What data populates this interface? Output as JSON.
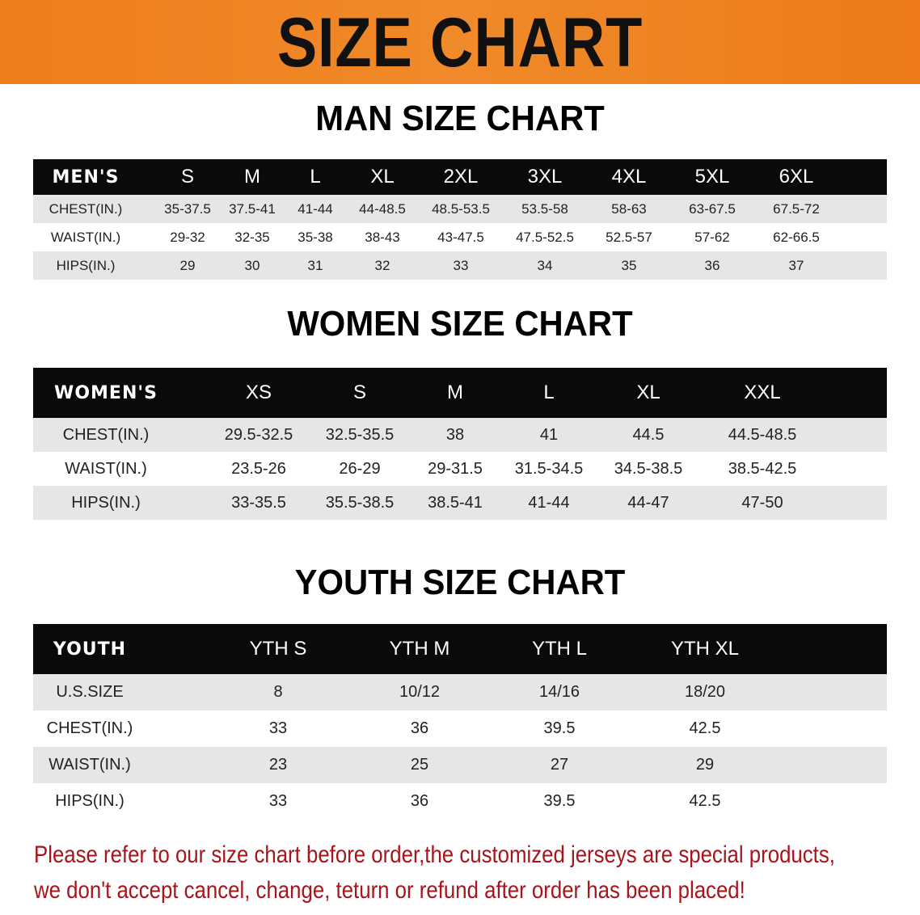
{
  "banner": {
    "title": "SIZE CHART",
    "color": "#ee7d1c"
  },
  "men": {
    "title": "MAN SIZE CHART",
    "header": [
      "MEN'S",
      "S",
      "M",
      "L",
      "XL",
      "2XL",
      "3XL",
      "4XL",
      "5XL",
      "6XL"
    ],
    "rows": [
      [
        "CHEST(IN.)",
        "35-37.5",
        "37.5-41",
        "41-44",
        "44-48.5",
        "48.5-53.5",
        "53.5-58",
        "58-63",
        "63-67.5",
        "67.5-72"
      ],
      [
        "WAIST(IN.)",
        "29-32",
        "32-35",
        "35-38",
        "38-43",
        "43-47.5",
        "47.5-52.5",
        "52.5-57",
        "57-62",
        "62-66.5"
      ],
      [
        "HIPS(IN.)",
        "29",
        "30",
        "31",
        "32",
        "33",
        "34",
        "35",
        "36",
        "37"
      ]
    ]
  },
  "women": {
    "title": "WOMEN SIZE CHART",
    "header": [
      "WOMEN'S",
      "XS",
      "S",
      "M",
      "L",
      "XL",
      "XXL"
    ],
    "rows": [
      [
        "CHEST(IN.)",
        "29.5-32.5",
        "32.5-35.5",
        "38",
        "41",
        "44.5",
        "44.5-48.5"
      ],
      [
        "WAIST(IN.)",
        "23.5-26",
        "26-29",
        "29-31.5",
        "31.5-34.5",
        "34.5-38.5",
        "38.5-42.5"
      ],
      [
        "HIPS(IN.)",
        "33-35.5",
        "35.5-38.5",
        "38.5-41",
        "41-44",
        "44-47",
        "47-50"
      ]
    ]
  },
  "youth": {
    "title": "YOUTH SIZE CHART",
    "header": [
      "YOUTH",
      "YTH S",
      "YTH M",
      "YTH L",
      "YTH XL"
    ],
    "rows": [
      [
        "U.S.SIZE",
        "8",
        "10/12",
        "14/16",
        "18/20"
      ],
      [
        "CHEST(IN.)",
        "33",
        "36",
        "39.5",
        "42.5"
      ],
      [
        "WAIST(IN.)",
        "23",
        "25",
        "27",
        "29"
      ],
      [
        "HIPS(IN.)",
        "33",
        "36",
        "39.5",
        "42.5"
      ]
    ]
  },
  "note": {
    "line1": "Please refer to our size chart before order,the customized jerseys are special products,",
    "line2": "we don't accept cancel, change, teturn or refund after order has been placed!",
    "color": "#a8141c"
  }
}
